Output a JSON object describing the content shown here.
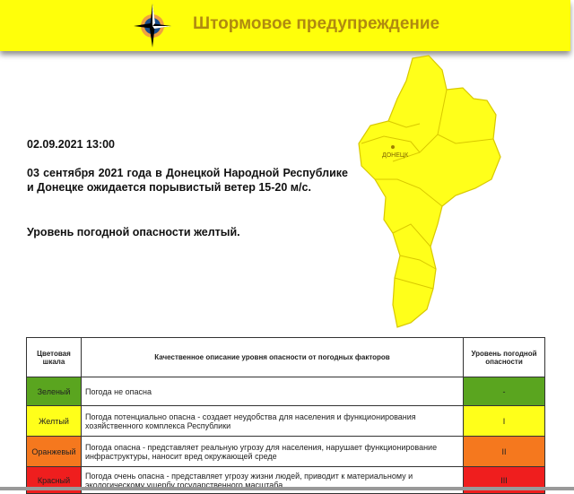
{
  "header": {
    "title": "Штормовое предупреждение",
    "logo_icon": "compass-rose-icon"
  },
  "content": {
    "date": "02.09.2021 13:00",
    "message": "03 сентября 2021 года в Донецкой Народной Республике и Донецке ожидается порывистый ветер 15-20 м/с.",
    "level": "Уровень погодной опасности желтый."
  },
  "map": {
    "city_label": "ДОНЕЦК",
    "fill_color": "#ffff1a"
  },
  "table": {
    "headers": [
      "Цветовая шкала",
      "Качественное описание уровня опасности от погодных факторов",
      "Уровень погодной опасности"
    ],
    "rows": [
      {
        "color_name": "Зеленый",
        "description": "Погода не опасна",
        "level": "-",
        "color": "#5aa51f"
      },
      {
        "color_name": "Желтый",
        "description": "Погода потенциально опасна - создает неудобства для населения и функционирования хозяйственного комплекса Республики",
        "level": "I",
        "color": "#ffff1a"
      },
      {
        "color_name": "Оранжевый",
        "description": "Погода опасна - представляет реальную угрозу для населения, нарушает функционирование инфраструктуры, наносит вред окружающей среде",
        "level": "II",
        "color": "#f5781e"
      },
      {
        "color_name": "Красный",
        "description": "Погода очень опасна - представляет угрозу жизни людей, приводит к материальному и экологическому ущербу государственного масштаба",
        "level": "III",
        "color": "#ef1e1e"
      }
    ]
  }
}
